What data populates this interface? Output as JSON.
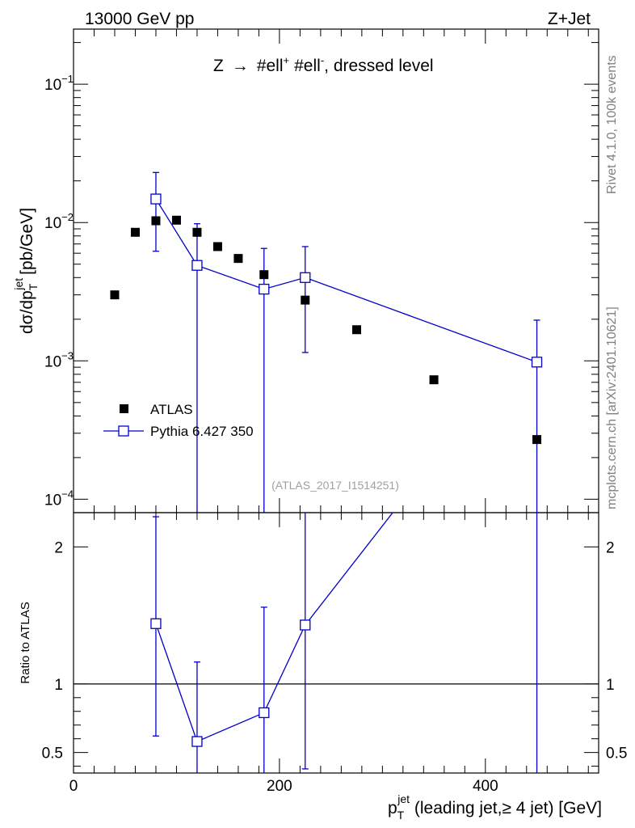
{
  "header": {
    "left": "13000 GeV pp",
    "right": "Z+Jet"
  },
  "side_labels": {
    "rivet": "Rivet 4.1.0,  100k events",
    "mcplots": "mcplots.cern.ch [arXiv:2401.10621]"
  },
  "chart_data": [
    {
      "type": "scatter",
      "panel": "main",
      "title": "Z → #ell+ #ell-, dressed level",
      "title_parts": {
        "lead": "Z",
        "arrow": "→",
        "l1": "#ell",
        "sup1": "+",
        "l2": "#ell",
        "sup2": "-",
        "tail": ", dressed level"
      },
      "analysis_label": "(ATLAS_2017_I1514251)",
      "ylabel": "dσ/dp_T^jet [pb/GeV]",
      "ylabel_parts": {
        "main": "dσ/dp",
        "sub": "T",
        "sup": "jet",
        "units": "[pb/GeV]"
      },
      "yscale": "log",
      "ylim": [
        8e-05,
        0.25
      ],
      "xlim": [
        0,
        510
      ],
      "y_ticks": [
        {
          "value": 0.1,
          "base": "10",
          "exp": "−1"
        },
        {
          "value": 0.01,
          "base": "10",
          "exp": "−2"
        },
        {
          "value": 0.001,
          "base": "10",
          "exp": "−3"
        },
        {
          "value": 0.0001,
          "base": "10",
          "exp": "−4"
        }
      ],
      "legend_position": "lower-left",
      "series": [
        {
          "name": "ATLAS",
          "marker": "filled-square",
          "color": "#000000",
          "x": [
            40,
            60,
            80,
            100,
            120,
            140,
            160,
            185,
            225,
            275,
            350,
            450
          ],
          "y": [
            0.003,
            0.0085,
            0.0103,
            0.0104,
            0.0085,
            0.0067,
            0.0055,
            0.0042,
            0.00275,
            0.00168,
            0.00073,
            0.00027
          ]
        },
        {
          "name": "Pythia 6.427 350",
          "marker": "open-square",
          "color": "#0000cc",
          "x": [
            80,
            120,
            185,
            225,
            450
          ],
          "y": [
            0.0148,
            0.0049,
            0.0033,
            0.004,
            0.00098
          ],
          "err_low": [
            0.0086,
            0.0049,
            0.0033,
            0.00285,
            0.00098
          ],
          "err_high": [
            0.0082,
            0.0049,
            0.0032,
            0.0027,
            0.00099
          ]
        }
      ]
    },
    {
      "type": "line",
      "panel": "ratio",
      "ylabel": "Ratio to ATLAS",
      "xlabel": "p_T^jet (leading jet,≥ 4 jet) [GeV]",
      "xlabel_parts": {
        "p": "p",
        "sub": "T",
        "sup": "jet",
        "rest": " (leading jet,≥ 4 jet) [GeV]"
      },
      "ylim": [
        0.35,
        2.25
      ],
      "xlim": [
        0,
        510
      ],
      "x_ticks": [
        "0",
        "200",
        "400"
      ],
      "x_tick_values": [
        0,
        200,
        400
      ],
      "y_ticks": [
        "0.5",
        "1",
        "2"
      ],
      "y_tick_values": [
        0.5,
        1,
        2
      ],
      "reference": 1,
      "series": [
        {
          "name": "Pythia 6.427 350",
          "color": "#0000cc",
          "x": [
            80,
            120,
            185,
            225,
            450
          ],
          "y": [
            1.44,
            0.58,
            0.79,
            1.43,
            3.6
          ],
          "err_low": [
            0.82,
            0.58,
            0.79,
            1.05,
            3.6
          ],
          "err_high": [
            0.78,
            0.58,
            0.77,
            0.96,
            3.7
          ]
        }
      ]
    }
  ]
}
